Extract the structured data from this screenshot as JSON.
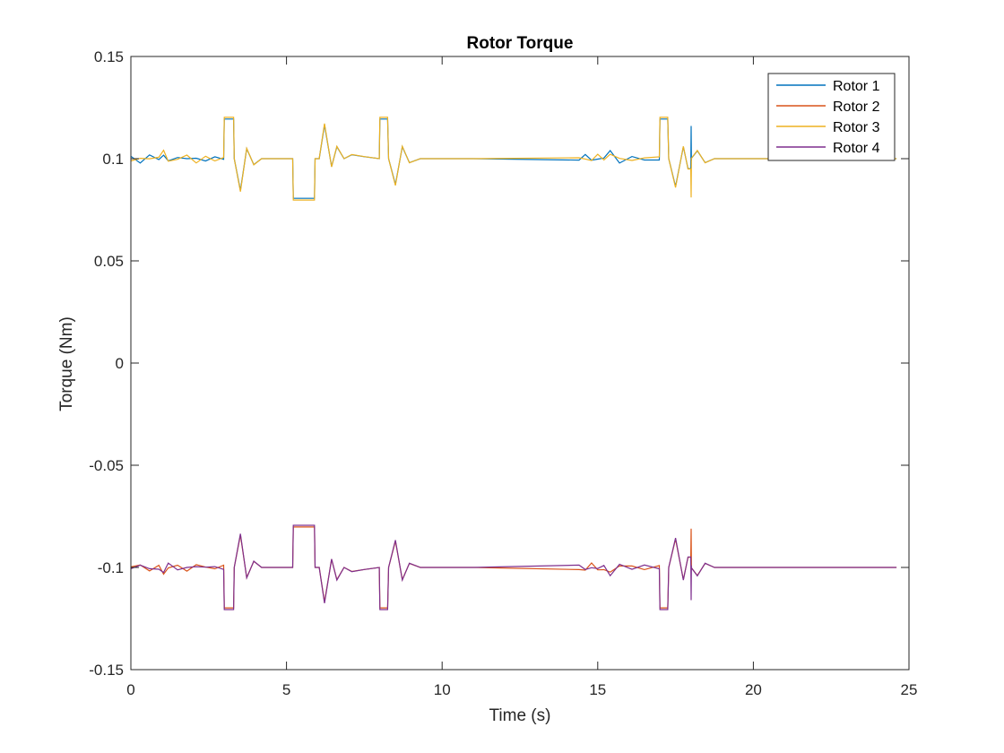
{
  "chart_data": {
    "type": "line",
    "title": "Rotor Torque",
    "xlabel": "Time (s)",
    "ylabel": "Torque (Nm)",
    "xlim": [
      0,
      25
    ],
    "ylim": [
      -0.15,
      0.15
    ],
    "xticks": [
      0,
      5,
      10,
      15,
      20,
      25
    ],
    "xtick_labels": [
      "0",
      "5",
      "10",
      "15",
      "20",
      "25"
    ],
    "yticks": [
      -0.15,
      -0.1,
      -0.05,
      0,
      0.05,
      0.1,
      0.15
    ],
    "ytick_labels": [
      "-0.15",
      "-0.1",
      "-0.05",
      "0",
      "0.05",
      "0.1",
      "0.15"
    ],
    "grid": false,
    "legend_position": "top-right",
    "series": [
      {
        "name": "Rotor 1",
        "color": "#0072BD",
        "sign": 1,
        "variant": 1
      },
      {
        "name": "Rotor 2",
        "color": "#D95319",
        "sign": -1,
        "variant": 2
      },
      {
        "name": "Rotor 3",
        "color": "#EDB120",
        "sign": 1,
        "variant": 3
      },
      {
        "name": "Rotor 4",
        "color": "#7E2F8E",
        "sign": -1,
        "variant": 4
      }
    ],
    "base_profile": {
      "x": [
        0,
        0.3,
        0.6,
        0.9,
        1.05,
        1.2,
        1.5,
        1.8,
        2.1,
        2.4,
        2.7,
        2.98,
        3.0,
        3.3,
        3.32,
        3.52,
        3.72,
        3.95,
        4.2,
        4.5,
        4.8,
        5.2,
        5.22,
        5.9,
        5.92,
        6.05,
        6.22,
        6.45,
        6.62,
        6.85,
        7.1,
        7.5,
        7.98,
        8.0,
        8.25,
        8.28,
        8.5,
        8.72,
        8.95,
        9.3,
        9.7,
        10.2,
        11,
        14.4,
        14.6,
        14.8,
        15.0,
        15.2,
        15.4,
        15.7,
        16.1,
        16.5,
        16.98,
        17.0,
        17.25,
        17.28,
        17.5,
        17.75,
        17.9,
        18.0,
        18.2,
        18.45,
        18.75,
        19.2,
        20,
        24.6
      ],
      "y": [
        0.1,
        0.099,
        0.101,
        0.1,
        0.103,
        0.099,
        0.1,
        0.101,
        0.099,
        0.1,
        0.1,
        0.1,
        0.12,
        0.12,
        0.1,
        0.084,
        0.105,
        0.097,
        0.1,
        0.1,
        0.1,
        0.1,
        0.08,
        0.08,
        0.1,
        0.1,
        0.117,
        0.096,
        0.106,
        0.1,
        0.102,
        0.101,
        0.1,
        0.12,
        0.12,
        0.1,
        0.087,
        0.106,
        0.098,
        0.1,
        0.1,
        0.1,
        0.1,
        0.1,
        0.101,
        0.099,
        0.101,
        0.1,
        0.103,
        0.099,
        0.1,
        0.1,
        0.1,
        0.12,
        0.12,
        0.1,
        0.086,
        0.106,
        0.095,
        0.1,
        0.104,
        0.098,
        0.1,
        0.1,
        0.1,
        0.1
      ]
    },
    "spike": {
      "x": 18.0,
      "rotor1_peak": 0.116,
      "rotor3_dip": 0.081,
      "rotor2_peak": -0.081,
      "rotor4_dip": -0.116
    }
  }
}
